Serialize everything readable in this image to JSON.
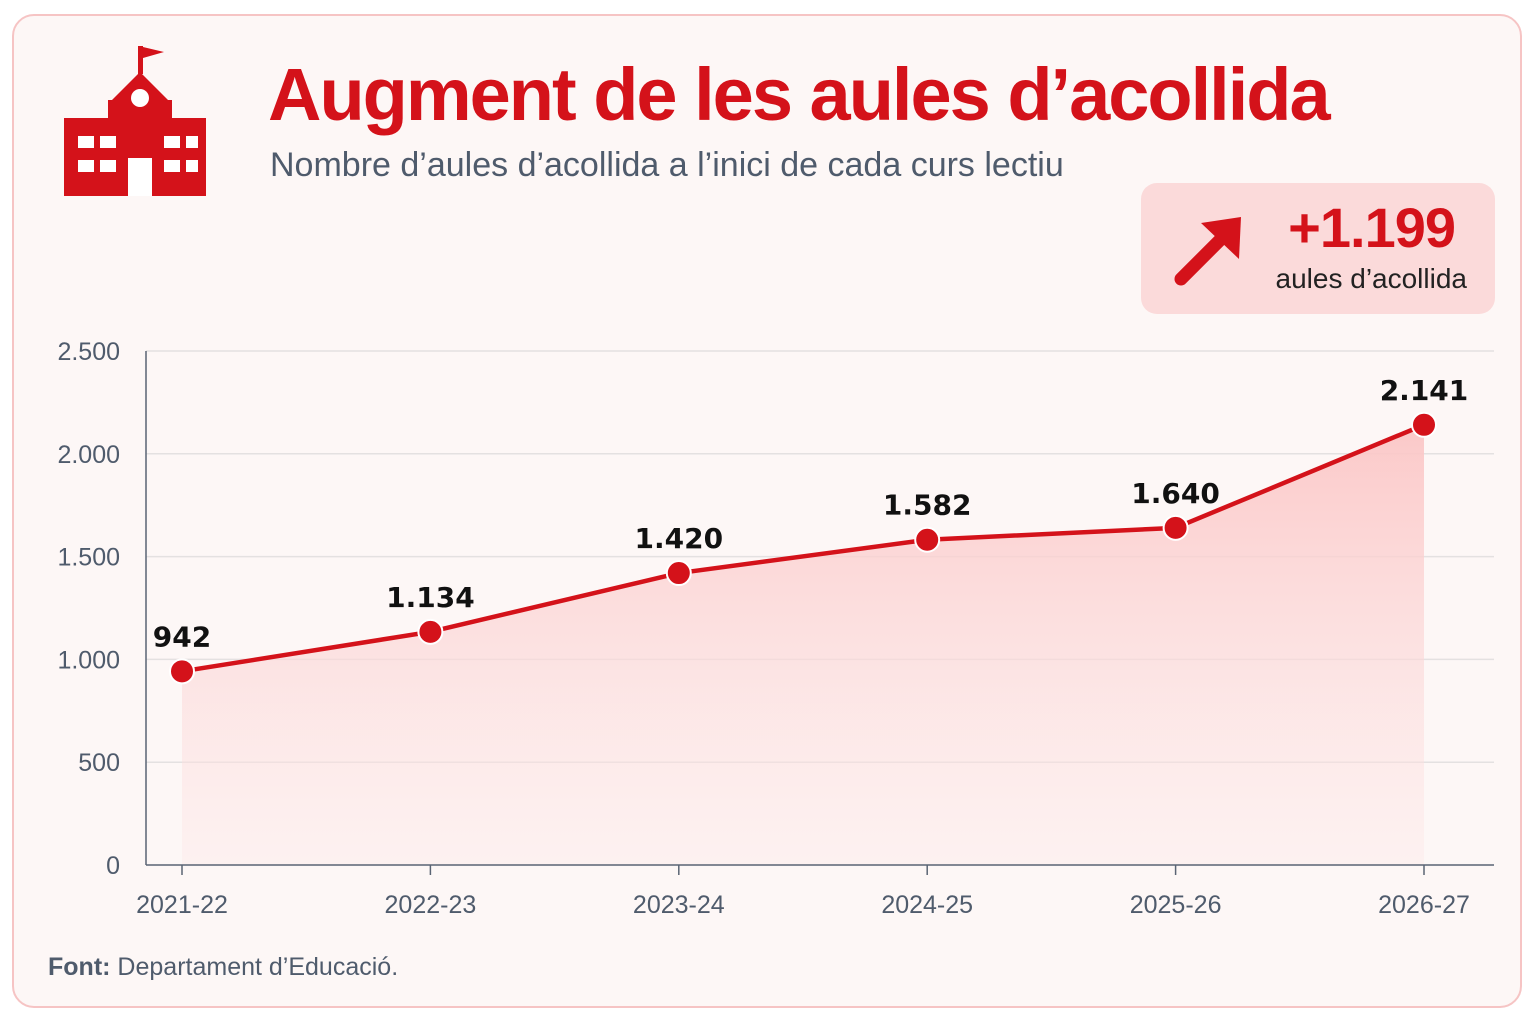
{
  "header": {
    "title": "Augment de les aules d’acollida",
    "subtitle": "Nombre d’aules d’acollida a l’inici de cada curs lectiu",
    "icon": "school-icon"
  },
  "highlight": {
    "value": "+1.199",
    "label": "aules d’acollida",
    "icon": "arrow-up-right-icon"
  },
  "source": {
    "prefix": "Font:",
    "text": "Departament d’Educació."
  },
  "colors": {
    "accent": "#d4121a",
    "fill": "#fbd0d0",
    "background": "#fdf7f6",
    "axis_text": "#4f5b6c"
  },
  "chart_data": {
    "type": "area",
    "categories": [
      "2021-22",
      "2022-23",
      "2023-24",
      "2024-25",
      "2025-26",
      "2026-27"
    ],
    "values": [
      942,
      1134,
      1420,
      1582,
      1640,
      2141
    ],
    "value_labels": [
      "942",
      "1.134",
      "1.420",
      "1.582",
      "1.640",
      "2.141"
    ],
    "y_ticks": [
      0,
      500,
      1000,
      1500,
      2000,
      2500
    ],
    "y_tick_labels": [
      "0",
      "500",
      "1.000",
      "1.500",
      "2.000",
      "2.500"
    ],
    "ylim": [
      0,
      2500
    ],
    "grid": true,
    "xlabel": "",
    "ylabel": ""
  }
}
